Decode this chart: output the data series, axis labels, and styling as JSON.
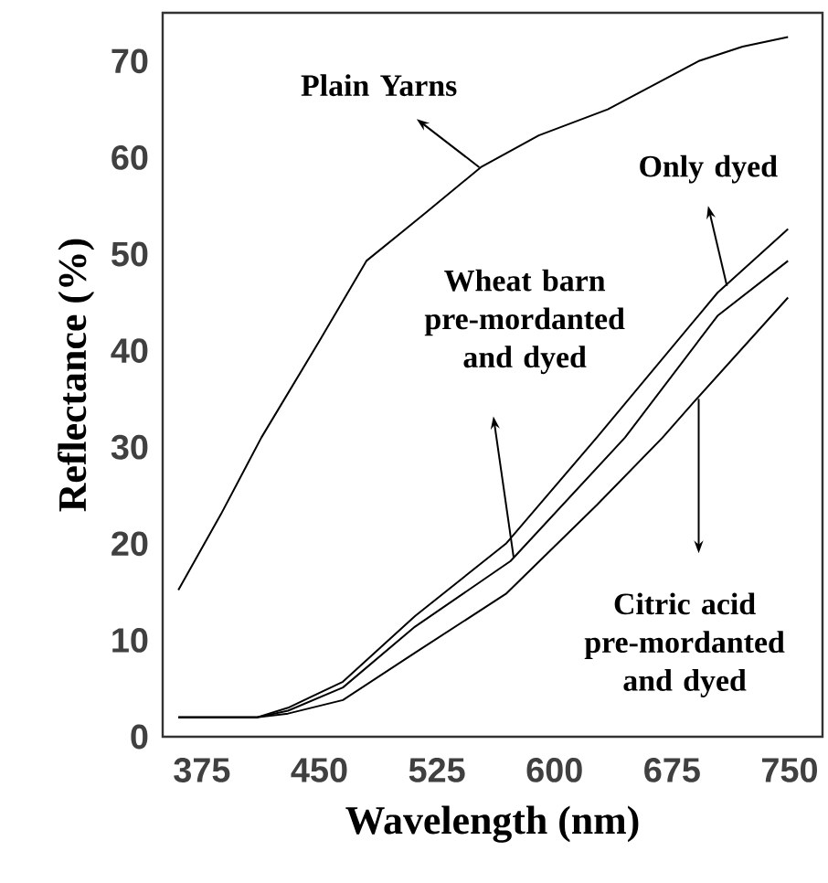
{
  "chart_data": {
    "type": "line",
    "xlabel": "Wavelength (nm)",
    "ylabel": "Reflectance (%)",
    "xlim": [
      350,
      771
    ],
    "ylim": [
      0,
      75
    ],
    "xticks": [
      375,
      450,
      525,
      600,
      675,
      750
    ],
    "yticks": [
      0,
      10,
      20,
      30,
      40,
      50,
      60,
      70
    ],
    "marker": "none",
    "line_style": "solid",
    "annotations": [
      "Plain Yarns",
      "Only dyed",
      "Wheat barn pre-mordanted and dyed",
      "Citric acid pre-mordanted and dyed"
    ],
    "series": [
      {
        "color": "#000000",
        "x": [
          360,
          387,
          413,
          450,
          480,
          518,
          553,
          590,
          634,
          692,
          720,
          749
        ],
        "values": [
          15.2,
          23,
          31,
          41,
          49.3,
          54.3,
          59,
          62.3,
          65,
          70,
          71.5,
          72.5
        ]
      },
      {
        "color": "#000000",
        "x": [
          360,
          410,
          430,
          465,
          511,
          569,
          627,
          704,
          749
        ],
        "values": [
          2,
          2,
          3,
          5.7,
          12.5,
          20,
          31,
          46,
          52.6
        ]
      },
      {
        "color": "#000000",
        "x": [
          360,
          410,
          430,
          465,
          511,
          572,
          645,
          704,
          749
        ],
        "values": [
          2,
          2,
          2.7,
          5.1,
          11.4,
          18.2,
          31,
          43.6,
          49.3
        ]
      },
      {
        "color": "#000000",
        "x": [
          360,
          410,
          430,
          465,
          511,
          569,
          627,
          669,
          689,
          749
        ],
        "values": [
          2,
          2,
          2.4,
          3.8,
          8.7,
          14.8,
          24,
          31,
          34.7,
          45.5
        ]
      }
    ]
  }
}
